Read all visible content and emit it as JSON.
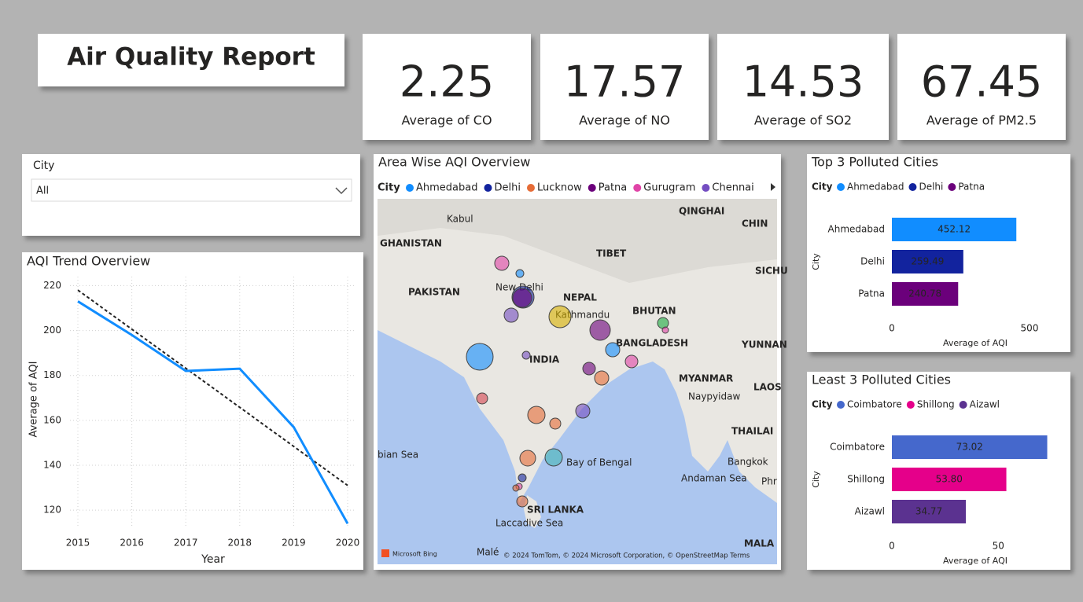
{
  "header": {
    "title": "Air Quality Report"
  },
  "kpis": [
    {
      "value": 2.25,
      "label": "Average of CO"
    },
    {
      "value": 17.57,
      "label": "Average of NO"
    },
    {
      "value": 14.53,
      "label": "Average of SO2"
    },
    {
      "value": 67.45,
      "label": "Average of PM2.5"
    }
  ],
  "slicer": {
    "label": "City",
    "selected": "All"
  },
  "map": {
    "title": "Area Wise AQI Overview",
    "legend_title": "City",
    "legend": [
      {
        "name": "Ahmedabad",
        "color": "#118dff"
      },
      {
        "name": "Delhi",
        "color": "#12239e"
      },
      {
        "name": "Lucknow",
        "color": "#e66c37"
      },
      {
        "name": "Patna",
        "color": "#6b007b"
      },
      {
        "name": "Gurugram",
        "color": "#e044a7"
      },
      {
        "name": "Chennai",
        "color": "#744ec2"
      }
    ],
    "labels": [
      "Kabul",
      "GHANISTAN",
      "PAKISTAN",
      "New Delhi",
      "NEPAL",
      "Kathmandu",
      "TIBET",
      "QINGHAI",
      "CHIN",
      "SICHU",
      "BHUTAN",
      "BANGLADESH",
      "YUNNAN",
      "INDIA",
      "MYANMAR",
      "Naypyidaw",
      "LAOS",
      "THAILAI",
      "Bangkok",
      "Bay of Bengal",
      "Andaman Sea",
      "bian Sea",
      "SRI LANKA",
      "Laccadive Sea",
      "Malé",
      "MALA",
      "Phr"
    ],
    "credits": "© 2024 TomTom, © 2024 Microsoft Corporation, © OpenStreetMap  Terms",
    "brand": "Microsoft Bing"
  },
  "chart_data": [
    {
      "type": "line",
      "title": "AQI Trend Overview",
      "x_label": "Year",
      "y_label": "Average of AQI",
      "x": [
        2015,
        2016,
        2017,
        2018,
        2019,
        2020
      ],
      "values": [
        213,
        198,
        182,
        183,
        157,
        114
      ],
      "color": "#118dff",
      "trend": {
        "values": [
          218,
          200.6,
          183.2,
          165.8,
          148.4,
          131
        ],
        "color": "#222222"
      },
      "xlim": [
        2015,
        2020
      ],
      "xticks": [
        2015,
        2016,
        2017,
        2018,
        2019,
        2020
      ],
      "ylim": [
        112,
        224
      ],
      "yticks": [
        120,
        140,
        160,
        180,
        200,
        220
      ],
      "grid": true
    },
    {
      "type": "bar",
      "orientation": "horizontal",
      "title": "Top 3 Polluted Cities",
      "legend_title": "City",
      "y_label": "City",
      "x_label": "Average of AQI",
      "categories": [
        "Ahmedabad",
        "Delhi",
        "Patna"
      ],
      "values": [
        452.12,
        259.49,
        240.78
      ],
      "value_labels": [
        "452.12",
        "259.49",
        "240.78"
      ],
      "colors": [
        "#118dff",
        "#12239e",
        "#6b007b"
      ],
      "xlim": [
        0,
        580
      ],
      "xticks": [
        0,
        500
      ]
    },
    {
      "type": "bar",
      "orientation": "horizontal",
      "title": "Least 3 Polluted Cities",
      "legend_title": "City",
      "y_label": "City",
      "x_label": "Average of AQI",
      "categories": [
        "Coimbatore",
        "Shillong",
        "Aizawl"
      ],
      "values": [
        73.02,
        53.8,
        34.77
      ],
      "value_labels": [
        "73.02",
        "53.80",
        "34.77"
      ],
      "colors": [
        "#4568cc",
        "#e5008a",
        "#5b3290"
      ],
      "xlim": [
        0,
        78
      ],
      "xticks": [
        0,
        50
      ]
    }
  ]
}
